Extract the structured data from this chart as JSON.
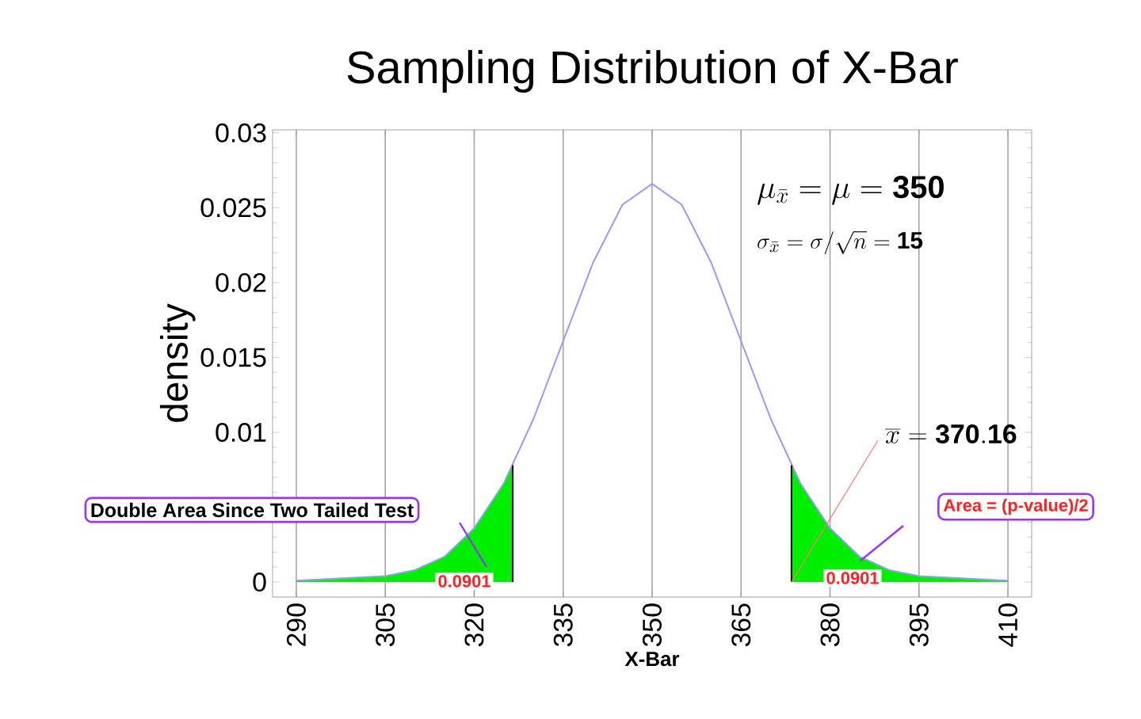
{
  "chart_data": {
    "type": "line",
    "title": "Sampling Distribution of X-Bar",
    "xlabel": "X-Bar",
    "ylabel": "density",
    "xlim": [
      286,
      414
    ],
    "ylim": [
      -0.001,
      0.0302
    ],
    "xticks": [
      290,
      305,
      320,
      335,
      350,
      365,
      380,
      395,
      410
    ],
    "yticks": [
      0,
      {
        "value": 0.005,
        "label": null
      },
      0.01,
      0.015,
      0.02,
      0.025,
      0.03
    ],
    "grid": "x",
    "series": [
      {
        "type": "area",
        "color": "#00ee00",
        "x": [
          290,
          295,
          300,
          305,
          310,
          315,
          320,
          325,
          326.5
        ],
        "values": [
          0.0001,
          0.0002,
          0.0003,
          0.0004,
          0.0008,
          0.0017,
          0.0036,
          0.0066,
          0.0078
        ]
      },
      {
        "type": "area",
        "color": "#00ee00",
        "x": [
          373.5,
          375,
          380,
          385,
          390,
          395,
          400,
          405,
          410
        ],
        "values": [
          0.0078,
          0.0066,
          0.0036,
          0.0017,
          0.0008,
          0.0004,
          0.0003,
          0.0002,
          0.0001
        ]
      },
      {
        "type": "line",
        "color": "#9999ff",
        "x": [
          290,
          295,
          300,
          305,
          310,
          315,
          320,
          325,
          330,
          335,
          340,
          345,
          350,
          355,
          360,
          365,
          370,
          375,
          380,
          385,
          390,
          395,
          400,
          405,
          410
        ],
        "values": [
          0.0001,
          0.0002,
          0.0003,
          0.0004,
          0.0008,
          0.0017,
          0.0036,
          0.0066,
          0.0109,
          0.0161,
          0.0213,
          0.0252,
          0.0266,
          0.0252,
          0.0213,
          0.0161,
          0.0109,
          0.0066,
          0.0036,
          0.0017,
          0.0008,
          0.0004,
          0.0003,
          0.0002,
          0.0001
        ]
      },
      {
        "type": "line",
        "color": "#000000",
        "x": [
          326.5,
          326.5
        ],
        "values": [
          0,
          0.0078
        ]
      },
      {
        "type": "line",
        "color": "#000000",
        "x": [
          373.5,
          373.5
        ],
        "values": [
          0,
          0.0078
        ]
      }
    ],
    "annotations": [
      "\\mu_{\\bar{x}} = \\mu = \\mathbf{350}",
      "\\sigma_{\\bar{x}} = \\sigma/\\sqrt{n} = \\mathbf{15}",
      {
        "text": "\\overline{x} = \\mathbf{370.16}",
        "x": 373.5,
        "y": 0
      },
      "Double Area Since Two Tailed Test",
      "Area = (p-value)/2",
      "0.0901",
      "0.0901"
    ]
  }
}
